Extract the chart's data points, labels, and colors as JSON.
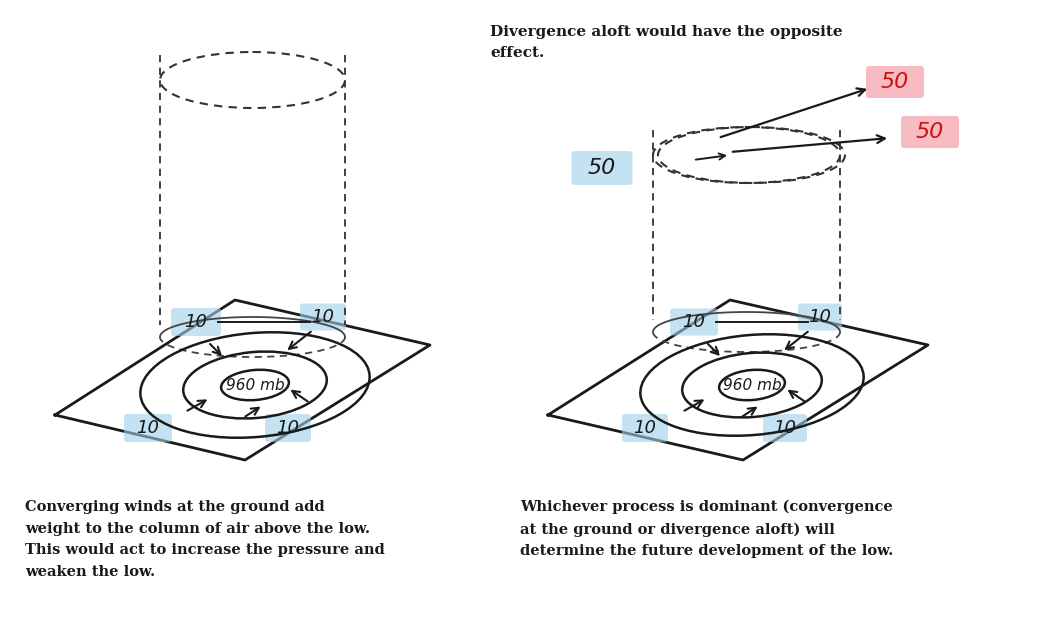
{
  "bg_color": "#ffffff",
  "left_caption": "Converging winds at the ground add\nweight to the column of air above the low.\nThis would act to increase the pressure and\nweaken the low.",
  "right_caption": "Whichever process is dominant (convergence\nat the ground or divergence aloft) will\ndetermine the future development of the low.",
  "divergence_text": "Divergence aloft would have the opposite\neffect.",
  "pressure_label": "960 mb",
  "wind_speed_low": "10",
  "wind_speed_high": "50",
  "blue_highlight": "#9ECFE8",
  "pink_highlight": "#F4A0A8",
  "blue_highlight_alpha": 0.6,
  "pink_highlight_alpha": 0.7,
  "dot_color": "#333333",
  "font_size_caption": 10.5,
  "font_size_label": 11,
  "font_size_speed_low": 13,
  "font_size_speed_high": 16
}
